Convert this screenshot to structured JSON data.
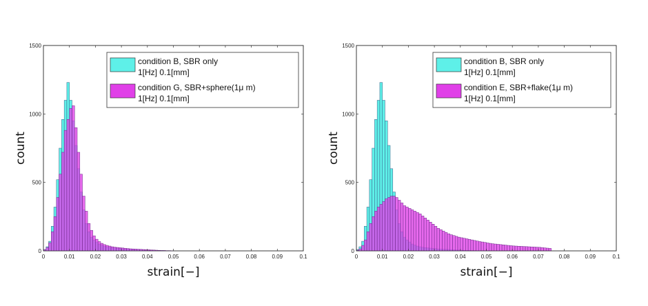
{
  "chart_data": [
    {
      "type": "bar",
      "xlabel": "strain[−]",
      "ylabel": "count",
      "xlim": [
        0,
        0.1
      ],
      "ylim": [
        0,
        1500
      ],
      "xticks": [
        "0",
        "0.01",
        "0.02",
        "0.03",
        "0.04",
        "0.05",
        "0.06",
        "0.07",
        "0.08",
        "0.09",
        "0.1"
      ],
      "yticks": [
        "0",
        "500",
        "1000",
        "1500"
      ],
      "grid": false,
      "legend_position": "top-right",
      "bin_edges_start": 0,
      "bin_width": 0.001,
      "series": [
        {
          "legend": [
            "condition B, SBR only",
            "1[Hz] 0.1[mm]"
          ],
          "color": "#5ef0e8",
          "values": [
            10,
            30,
            70,
            180,
            320,
            520,
            750,
            960,
            1100,
            1230,
            1100,
            950,
            770,
            600,
            430,
            300,
            200,
            140,
            100,
            80,
            65,
            50,
            42,
            35,
            30,
            26,
            24,
            22,
            20,
            18,
            16,
            14,
            13,
            12,
            11,
            10,
            9,
            8,
            7,
            6,
            5,
            4,
            3,
            3,
            2,
            2,
            1,
            1,
            1,
            1
          ]
        },
        {
          "legend": [
            "condition G, SBR+sphere(1μ m)",
            "1[Hz] 0.1[mm]"
          ],
          "color": "#e040e8",
          "values": [
            8,
            25,
            60,
            140,
            250,
            390,
            560,
            720,
            880,
            960,
            1040,
            1060,
            900,
            720,
            560,
            400,
            290,
            200,
            150,
            110,
            85,
            68,
            55,
            46,
            40,
            35,
            30,
            27,
            25,
            23,
            21,
            19,
            17,
            15,
            14,
            13,
            12,
            11,
            10,
            9,
            8,
            7,
            6,
            5,
            4,
            3,
            3,
            2,
            2,
            1
          ]
        }
      ]
    },
    {
      "type": "bar",
      "xlabel": "strain[−]",
      "ylabel": "count",
      "xlim": [
        0,
        0.1
      ],
      "ylim": [
        0,
        1500
      ],
      "xticks": [
        "0",
        "0.01",
        "0.02",
        "0.03",
        "0.04",
        "0.05",
        "0.06",
        "0.07",
        "0.08",
        "0.09",
        "0.1"
      ],
      "yticks": [
        "0",
        "500",
        "1000",
        "1500"
      ],
      "grid": false,
      "legend_position": "top-right",
      "bin_edges_start": 0,
      "bin_width": 0.001,
      "series": [
        {
          "legend": [
            "condition B, SBR only",
            "1[Hz] 0.1[mm]"
          ],
          "color": "#5ef0e8",
          "values": [
            10,
            30,
            70,
            180,
            320,
            520,
            750,
            960,
            1100,
            1230,
            1100,
            950,
            770,
            600,
            430,
            300,
            200,
            140,
            100,
            80,
            65,
            50,
            42,
            35,
            30,
            26,
            24,
            22,
            20,
            18,
            16,
            14,
            13,
            12,
            11,
            10,
            9,
            8,
            7,
            6,
            5,
            4,
            3,
            3,
            2,
            2,
            1,
            1,
            1,
            1
          ]
        },
        {
          "legend": [
            "condition E, SBR+flake(1μ m)",
            "1[Hz] 0.1[mm]"
          ],
          "color": "#e040e8",
          "values": [
            5,
            15,
            40,
            80,
            140,
            200,
            250,
            290,
            320,
            340,
            360,
            380,
            390,
            400,
            400,
            390,
            370,
            350,
            330,
            320,
            310,
            300,
            290,
            280,
            270,
            255,
            240,
            225,
            210,
            195,
            180,
            165,
            155,
            145,
            135,
            125,
            118,
            112,
            106,
            100,
            96,
            92,
            88,
            84,
            80,
            76,
            72,
            68,
            65,
            62,
            58,
            55,
            52,
            50,
            48,
            46,
            44,
            42,
            40,
            38,
            36,
            35,
            34,
            33,
            32,
            31,
            30,
            29,
            28,
            27,
            26,
            24,
            22,
            20,
            18
          ]
        }
      ]
    }
  ]
}
